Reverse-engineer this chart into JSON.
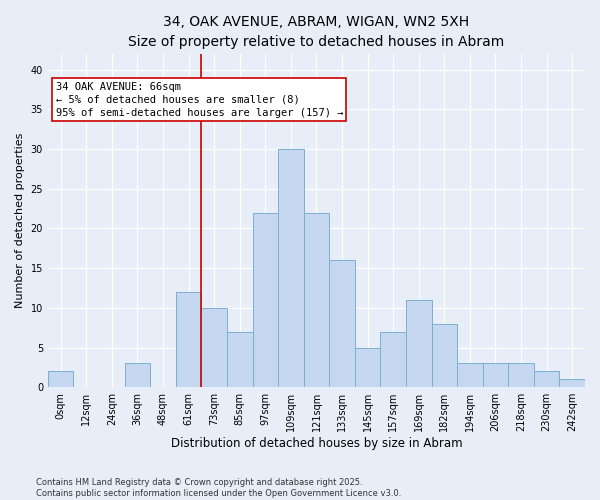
{
  "title_line1": "34, OAK AVENUE, ABRAM, WIGAN, WN2 5XH",
  "title_line2": "Size of property relative to detached houses in Abram",
  "xlabel": "Distribution of detached houses by size in Abram",
  "ylabel": "Number of detached properties",
  "bar_labels": [
    "0sqm",
    "12sqm",
    "24sqm",
    "36sqm",
    "48sqm",
    "61sqm",
    "73sqm",
    "85sqm",
    "97sqm",
    "109sqm",
    "121sqm",
    "133sqm",
    "145sqm",
    "157sqm",
    "169sqm",
    "182sqm",
    "194sqm",
    "206sqm",
    "218sqm",
    "230sqm",
    "242sqm"
  ],
  "bar_values": [
    2,
    0,
    0,
    3,
    0,
    12,
    10,
    7,
    22,
    30,
    22,
    16,
    5,
    7,
    11,
    8,
    3,
    3,
    3,
    2,
    1
  ],
  "bar_color": "#c5d8f0",
  "bar_edgecolor": "#7bafd4",
  "vline_x": 6.0,
  "vline_color": "#cc0000",
  "annotation_text": "34 OAK AVENUE: 66sqm\n← 5% of detached houses are smaller (8)\n95% of semi-detached houses are larger (157) →",
  "ylim": [
    0,
    42
  ],
  "yticks": [
    0,
    5,
    10,
    15,
    20,
    25,
    30,
    35,
    40
  ],
  "bg_color": "#e8eef8",
  "plot_bg_color": "#e8eef8",
  "grid_color": "#ffffff",
  "footnote": "Contains HM Land Registry data © Crown copyright and database right 2025.\nContains public sector information licensed under the Open Government Licence v3.0.",
  "title_fontsize": 10,
  "subtitle_fontsize": 9.5,
  "axis_label_fontsize": 8,
  "tick_fontsize": 7,
  "annotation_fontsize": 7.5,
  "footnote_fontsize": 6
}
